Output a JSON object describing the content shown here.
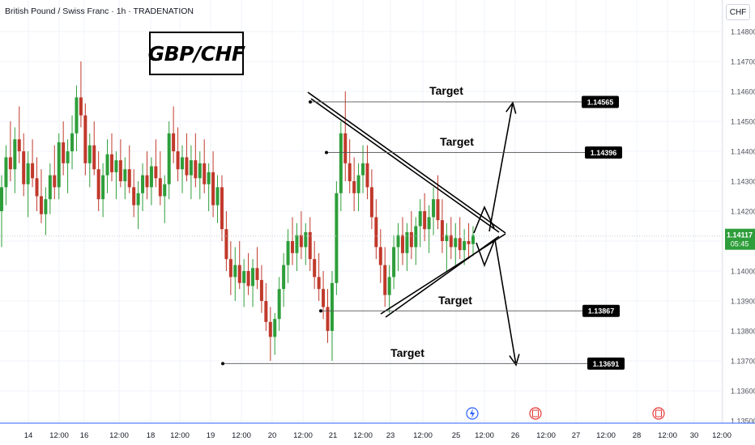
{
  "header": {
    "title": "British Pound / Swiss Franc · 1h · TRADENATION"
  },
  "badge": {
    "text": "GBP/CHF"
  },
  "currency_button": "CHF",
  "colors": {
    "up": "#26a69a",
    "up_body": "#2e9e3a",
    "down": "#c0392b",
    "grid": "#f0f3fa",
    "axis_line": "#2962ff",
    "text": "#131722",
    "tick": "#50535e"
  },
  "last_price": {
    "value": "1.14117",
    "countdown": "05:45"
  },
  "icons": [
    "lightning-icon",
    "event-icon",
    "event-icon"
  ],
  "chart_data": {
    "type": "candlestick",
    "y_axis": {
      "ylim": [
        1.135,
        1.149
      ],
      "ticks": [
        "1.14800",
        "1.14700",
        "1.14600",
        "1.14500",
        "1.14400",
        "1.14300",
        "1.14200",
        "1.14100",
        "1.14000",
        "1.13900",
        "1.13800",
        "1.13700",
        "1.13600",
        "1.13500"
      ]
    },
    "x_axis": {
      "ticks": [
        "14",
        "12:00",
        "16",
        "12:00",
        "18",
        "12:00",
        "19",
        "12:00",
        "20",
        "12:00",
        "21",
        "12:00",
        "23",
        "12:00",
        "25",
        "12:00",
        "26",
        "12:00",
        "27",
        "12:00",
        "28",
        "12:00",
        "30",
        "12:00"
      ]
    },
    "annotations": [
      {
        "label": "Target",
        "price": 1.14565,
        "price_label": "1.14565"
      },
      {
        "label": "Target",
        "price": 1.14396,
        "price_label": "1.14396"
      },
      {
        "label": "Target",
        "price": 1.13867,
        "price_label": "1.13867"
      },
      {
        "label": "Target",
        "price": 1.13691,
        "price_label": "1.13691"
      }
    ],
    "last_price": 1.14117,
    "candles": [
      [
        1.142,
        1.1432,
        1.1408,
        1.1428
      ],
      [
        1.1428,
        1.1442,
        1.1422,
        1.1438
      ],
      [
        1.1438,
        1.145,
        1.143,
        1.1434
      ],
      [
        1.1434,
        1.1448,
        1.1426,
        1.1444
      ],
      [
        1.1444,
        1.1455,
        1.1436,
        1.144
      ],
      [
        1.144,
        1.1446,
        1.1425,
        1.1429
      ],
      [
        1.1429,
        1.144,
        1.1418,
        1.1436
      ],
      [
        1.1436,
        1.1444,
        1.1428,
        1.1431
      ],
      [
        1.1431,
        1.1438,
        1.142,
        1.1425
      ],
      [
        1.1425,
        1.1434,
        1.1416,
        1.1419
      ],
      [
        1.1419,
        1.1428,
        1.1412,
        1.1424
      ],
      [
        1.1424,
        1.1436,
        1.1419,
        1.1432
      ],
      [
        1.1432,
        1.1442,
        1.1424,
        1.1428
      ],
      [
        1.1428,
        1.1446,
        1.1424,
        1.1443
      ],
      [
        1.1443,
        1.145,
        1.1432,
        1.1436
      ],
      [
        1.1436,
        1.1444,
        1.1426,
        1.144
      ],
      [
        1.144,
        1.1452,
        1.1434,
        1.1446
      ],
      [
        1.1446,
        1.1462,
        1.144,
        1.1458
      ],
      [
        1.1458,
        1.147,
        1.1448,
        1.1452
      ],
      [
        1.1452,
        1.1456,
        1.1432,
        1.1436
      ],
      [
        1.1436,
        1.1446,
        1.1428,
        1.1442
      ],
      [
        1.1442,
        1.145,
        1.1432,
        1.1434
      ],
      [
        1.1434,
        1.144,
        1.142,
        1.1424
      ],
      [
        1.1424,
        1.1436,
        1.1418,
        1.1432
      ],
      [
        1.1432,
        1.1444,
        1.1426,
        1.1439
      ],
      [
        1.1439,
        1.1446,
        1.143,
        1.1433
      ],
      [
        1.1433,
        1.144,
        1.1424,
        1.1437
      ],
      [
        1.1437,
        1.1444,
        1.1428,
        1.143
      ],
      [
        1.143,
        1.1438,
        1.1424,
        1.1434
      ],
      [
        1.1434,
        1.1442,
        1.1426,
        1.1428
      ],
      [
        1.1428,
        1.1434,
        1.1418,
        1.1422
      ],
      [
        1.1422,
        1.143,
        1.1414,
        1.1426
      ],
      [
        1.1426,
        1.1436,
        1.142,
        1.1432
      ],
      [
        1.1432,
        1.144,
        1.1424,
        1.1428
      ],
      [
        1.1428,
        1.1438,
        1.1422,
        1.1435
      ],
      [
        1.1435,
        1.1444,
        1.1428,
        1.1431
      ],
      [
        1.1431,
        1.144,
        1.1422,
        1.1425
      ],
      [
        1.1425,
        1.1432,
        1.1416,
        1.1429
      ],
      [
        1.1429,
        1.145,
        1.1424,
        1.1446
      ],
      [
        1.1446,
        1.1455,
        1.1436,
        1.144
      ],
      [
        1.144,
        1.1448,
        1.143,
        1.1434
      ],
      [
        1.1434,
        1.1442,
        1.1426,
        1.1438
      ],
      [
        1.1438,
        1.1446,
        1.143,
        1.1432
      ],
      [
        1.1432,
        1.1442,
        1.1424,
        1.1437
      ],
      [
        1.1437,
        1.1446,
        1.1428,
        1.1431
      ],
      [
        1.1431,
        1.144,
        1.1424,
        1.1436
      ],
      [
        1.1436,
        1.1444,
        1.1426,
        1.1429
      ],
      [
        1.1429,
        1.1436,
        1.142,
        1.1433
      ],
      [
        1.1433,
        1.144,
        1.1418,
        1.1422
      ],
      [
        1.1422,
        1.1432,
        1.1416,
        1.1428
      ],
      [
        1.1428,
        1.1432,
        1.141,
        1.1414
      ],
      [
        1.1414,
        1.142,
        1.14,
        1.1404
      ],
      [
        1.1404,
        1.141,
        1.1392,
        1.1398
      ],
      [
        1.1398,
        1.1408,
        1.139,
        1.1402
      ],
      [
        1.1402,
        1.141,
        1.1394,
        1.1396
      ],
      [
        1.1396,
        1.1404,
        1.1388,
        1.14
      ],
      [
        1.14,
        1.1406,
        1.1392,
        1.1395
      ],
      [
        1.1395,
        1.1404,
        1.1388,
        1.1401
      ],
      [
        1.1401,
        1.1408,
        1.1394,
        1.1397
      ],
      [
        1.1397,
        1.1402,
        1.1386,
        1.139
      ],
      [
        1.139,
        1.1396,
        1.138,
        1.1383
      ],
      [
        1.1383,
        1.1388,
        1.137,
        1.1378
      ],
      [
        1.1378,
        1.1386,
        1.1372,
        1.1384
      ],
      [
        1.1384,
        1.1398,
        1.138,
        1.1394
      ],
      [
        1.1394,
        1.1406,
        1.1388,
        1.1402
      ],
      [
        1.1402,
        1.1414,
        1.1396,
        1.141
      ],
      [
        1.141,
        1.1418,
        1.1402,
        1.1406
      ],
      [
        1.1406,
        1.1416,
        1.14,
        1.1412
      ],
      [
        1.1412,
        1.142,
        1.1404,
        1.1408
      ],
      [
        1.1408,
        1.1416,
        1.1402,
        1.1413
      ],
      [
        1.1413,
        1.1418,
        1.14,
        1.1404
      ],
      [
        1.1404,
        1.141,
        1.1394,
        1.1398
      ],
      [
        1.1398,
        1.1406,
        1.139,
        1.1394
      ],
      [
        1.1394,
        1.14,
        1.1384,
        1.1388
      ],
      [
        1.1388,
        1.1394,
        1.1376,
        1.138
      ],
      [
        1.138,
        1.14,
        1.137,
        1.1396
      ],
      [
        1.1396,
        1.143,
        1.1392,
        1.1426
      ],
      [
        1.1426,
        1.145,
        1.142,
        1.1446
      ],
      [
        1.1446,
        1.146,
        1.143,
        1.1436
      ],
      [
        1.1436,
        1.1444,
        1.1426,
        1.143
      ],
      [
        1.143,
        1.1438,
        1.142,
        1.1426
      ],
      [
        1.1426,
        1.1436,
        1.142,
        1.1432
      ],
      [
        1.1432,
        1.1442,
        1.1426,
        1.1436
      ],
      [
        1.1436,
        1.1442,
        1.1424,
        1.1428
      ],
      [
        1.1428,
        1.1434,
        1.1414,
        1.1418
      ],
      [
        1.1418,
        1.1424,
        1.1404,
        1.1408
      ],
      [
        1.1408,
        1.1414,
        1.1396,
        1.1402
      ],
      [
        1.1402,
        1.1408,
        1.1388,
        1.1392
      ],
      [
        1.1392,
        1.1402,
        1.1386,
        1.1398
      ],
      [
        1.1398,
        1.1412,
        1.1394,
        1.1408
      ],
      [
        1.1408,
        1.1416,
        1.14,
        1.1412
      ],
      [
        1.1412,
        1.1418,
        1.1402,
        1.1406
      ],
      [
        1.1406,
        1.1416,
        1.14,
        1.1413
      ],
      [
        1.1413,
        1.142,
        1.1404,
        1.1408
      ],
      [
        1.1408,
        1.1418,
        1.1402,
        1.1415
      ],
      [
        1.1415,
        1.1424,
        1.1408,
        1.142
      ],
      [
        1.142,
        1.1426,
        1.141,
        1.1414
      ],
      [
        1.1414,
        1.1422,
        1.1406,
        1.1418
      ],
      [
        1.1418,
        1.1428,
        1.1412,
        1.1424
      ],
      [
        1.1424,
        1.1432,
        1.1414,
        1.1417
      ],
      [
        1.1417,
        1.1424,
        1.1406,
        1.141
      ],
      [
        1.141,
        1.1416,
        1.14,
        1.1412
      ],
      [
        1.1412,
        1.1418,
        1.1404,
        1.1408
      ],
      [
        1.1408,
        1.1416,
        1.1402,
        1.1411
      ],
      [
        1.1411,
        1.1418,
        1.1404,
        1.1407
      ],
      [
        1.1407,
        1.1414,
        1.1402,
        1.141
      ],
      [
        1.141,
        1.1416,
        1.1404,
        1.1409
      ],
      [
        1.1409,
        1.1415,
        1.1405,
        1.1412
      ]
    ]
  }
}
